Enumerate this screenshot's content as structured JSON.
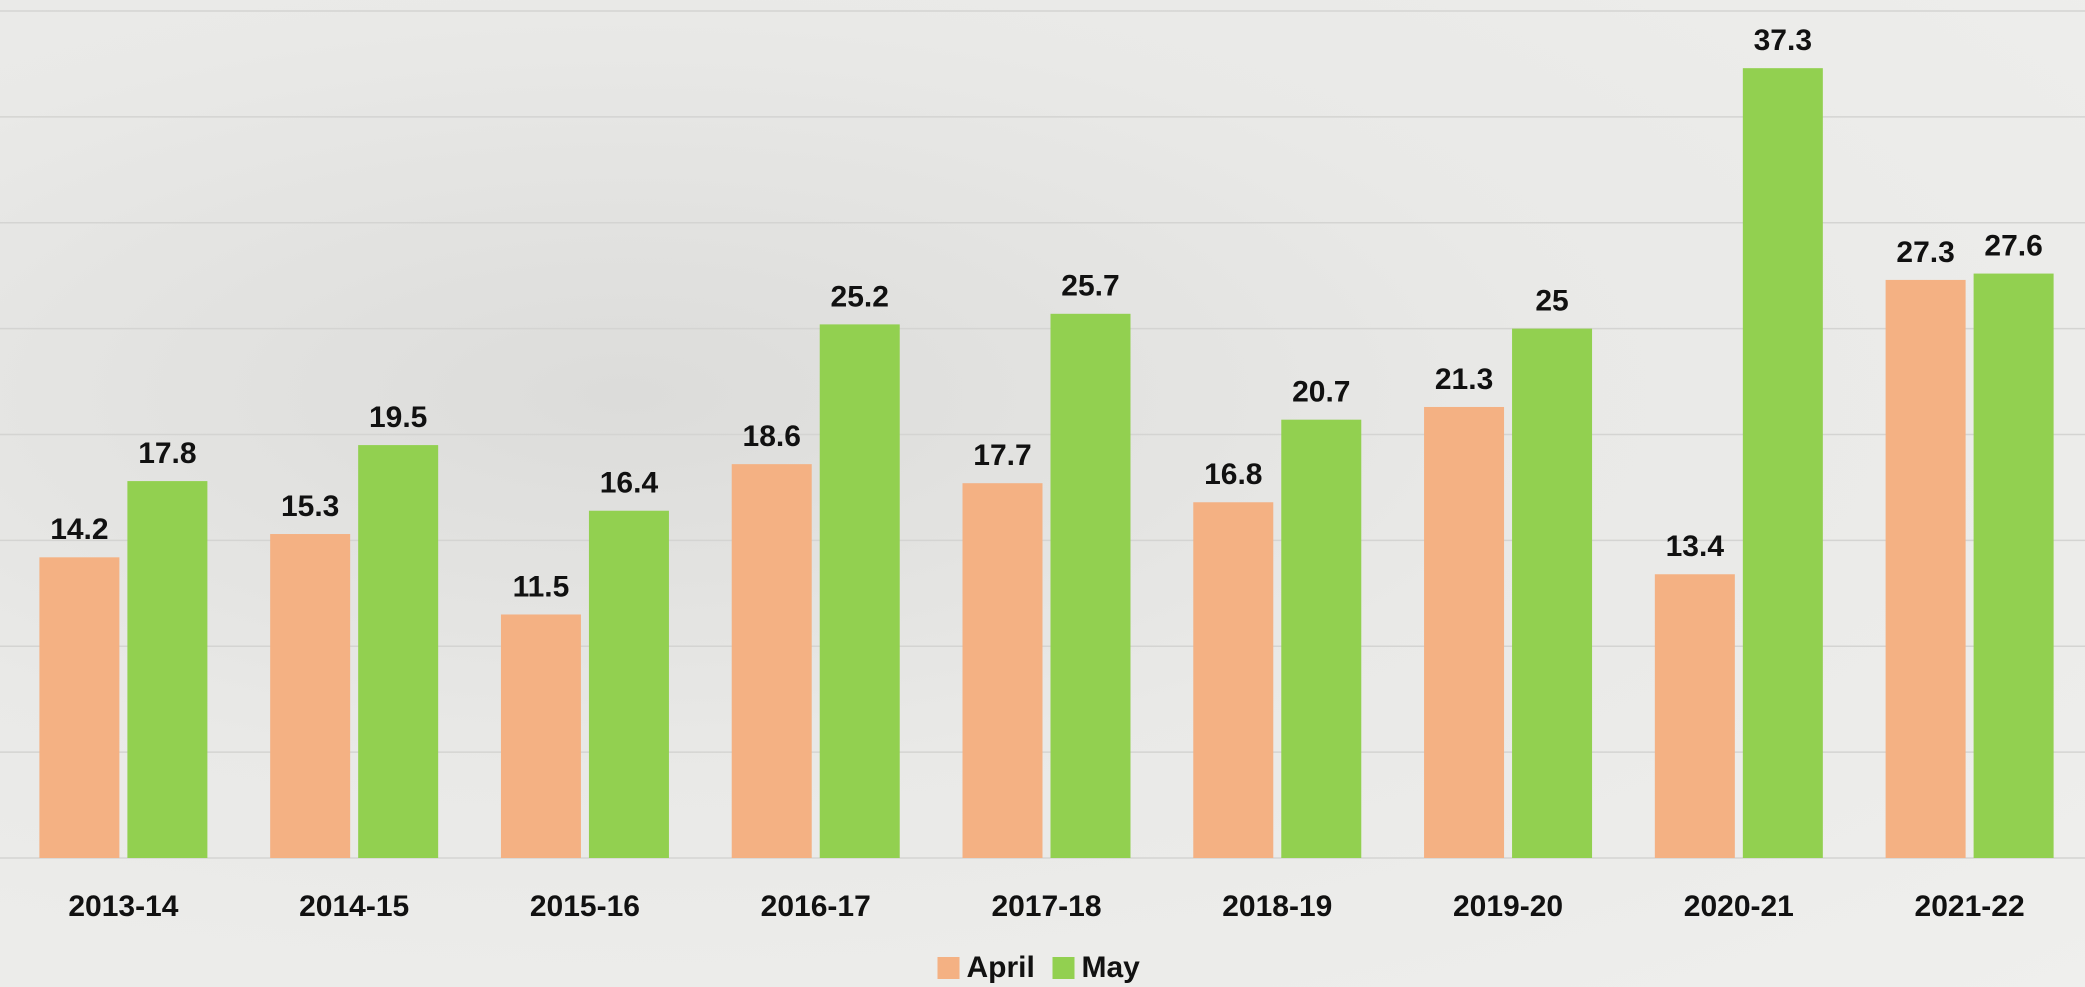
{
  "chart_data": {
    "type": "bar",
    "categories": [
      "2013-14",
      "2014-15",
      "2015-16",
      "2016-17",
      "2017-18",
      "2018-19",
      "2019-20",
      "2020-21",
      "2021-22"
    ],
    "series": [
      {
        "name": "April",
        "color": "#f4b183",
        "values": [
          14.2,
          15.3,
          11.5,
          18.6,
          17.7,
          16.8,
          21.3,
          13.4,
          27.3
        ]
      },
      {
        "name": "May",
        "color": "#92d050",
        "values": [
          17.8,
          19.5,
          16.4,
          25.2,
          25.7,
          20.7,
          25,
          37.3,
          27.6
        ]
      }
    ],
    "ylim": [
      0,
      40
    ],
    "yticks": [
      0,
      5,
      10,
      15,
      20,
      25,
      30,
      35,
      40
    ],
    "grid": true,
    "legend": "bottom"
  }
}
